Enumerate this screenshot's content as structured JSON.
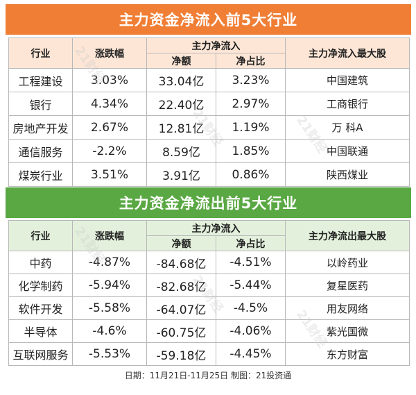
{
  "inflow": {
    "title": "主力资金净流入前5大行业",
    "headers": {
      "industry": "行业",
      "change": "涨跌幅",
      "main": "主力净流入",
      "net": "净额",
      "ratio": "净占比",
      "top_stock": "主力净流入最大股"
    },
    "rows": [
      {
        "industry": "工程建设",
        "change": "3.03%",
        "net": "33.04亿",
        "ratio": "3.23%",
        "stock": "中国建筑"
      },
      {
        "industry": "银行",
        "change": "4.34%",
        "net": "22.40亿",
        "ratio": "2.97%",
        "stock": "工商银行"
      },
      {
        "industry": "房地产开发",
        "change": "2.67%",
        "net": "12.81亿",
        "ratio": "1.19%",
        "stock": "万 科A"
      },
      {
        "industry": "通信服务",
        "change": "-2.2%",
        "net": "8.59亿",
        "ratio": "1.85%",
        "stock": "中国联通"
      },
      {
        "industry": "煤炭行业",
        "change": "3.51%",
        "net": "3.91亿",
        "ratio": "0.86%",
        "stock": "陕西煤业"
      }
    ]
  },
  "outflow": {
    "title": "主力资金净流出前5大行业",
    "headers": {
      "industry": "行业",
      "change": "涨跌幅",
      "main": "主力净流入",
      "net": "净额",
      "ratio": "净占比",
      "top_stock": "主力净流出最大股"
    },
    "rows": [
      {
        "industry": "中药",
        "change": "-4.87%",
        "net": "-84.68亿",
        "ratio": "-4.51%",
        "stock": "以岭药业"
      },
      {
        "industry": "化学制药",
        "change": "-5.94%",
        "net": "-82.68亿",
        "ratio": "-5.44%",
        "stock": "复星医药"
      },
      {
        "industry": "软件开发",
        "change": "-5.58%",
        "net": "-64.07亿",
        "ratio": "-4.5%",
        "stock": "用友网络"
      },
      {
        "industry": "半导体",
        "change": "-4.6%",
        "net": "-60.75亿",
        "ratio": "-4.06%",
        "stock": "紫光国微"
      },
      {
        "industry": "互联网服务",
        "change": "-5.53%",
        "net": "-59.18亿",
        "ratio": "-4.45%",
        "stock": "东方财富"
      }
    ]
  },
  "footer": "日期：11月21日-11月25日 制图：21投资通",
  "watermark": "21财经",
  "colors": {
    "inflow_banner": "#f07e35",
    "inflow_header_bg": "#fde6d6",
    "outflow_banner": "#5aa843",
    "outflow_header_bg": "#e3f1dc"
  }
}
